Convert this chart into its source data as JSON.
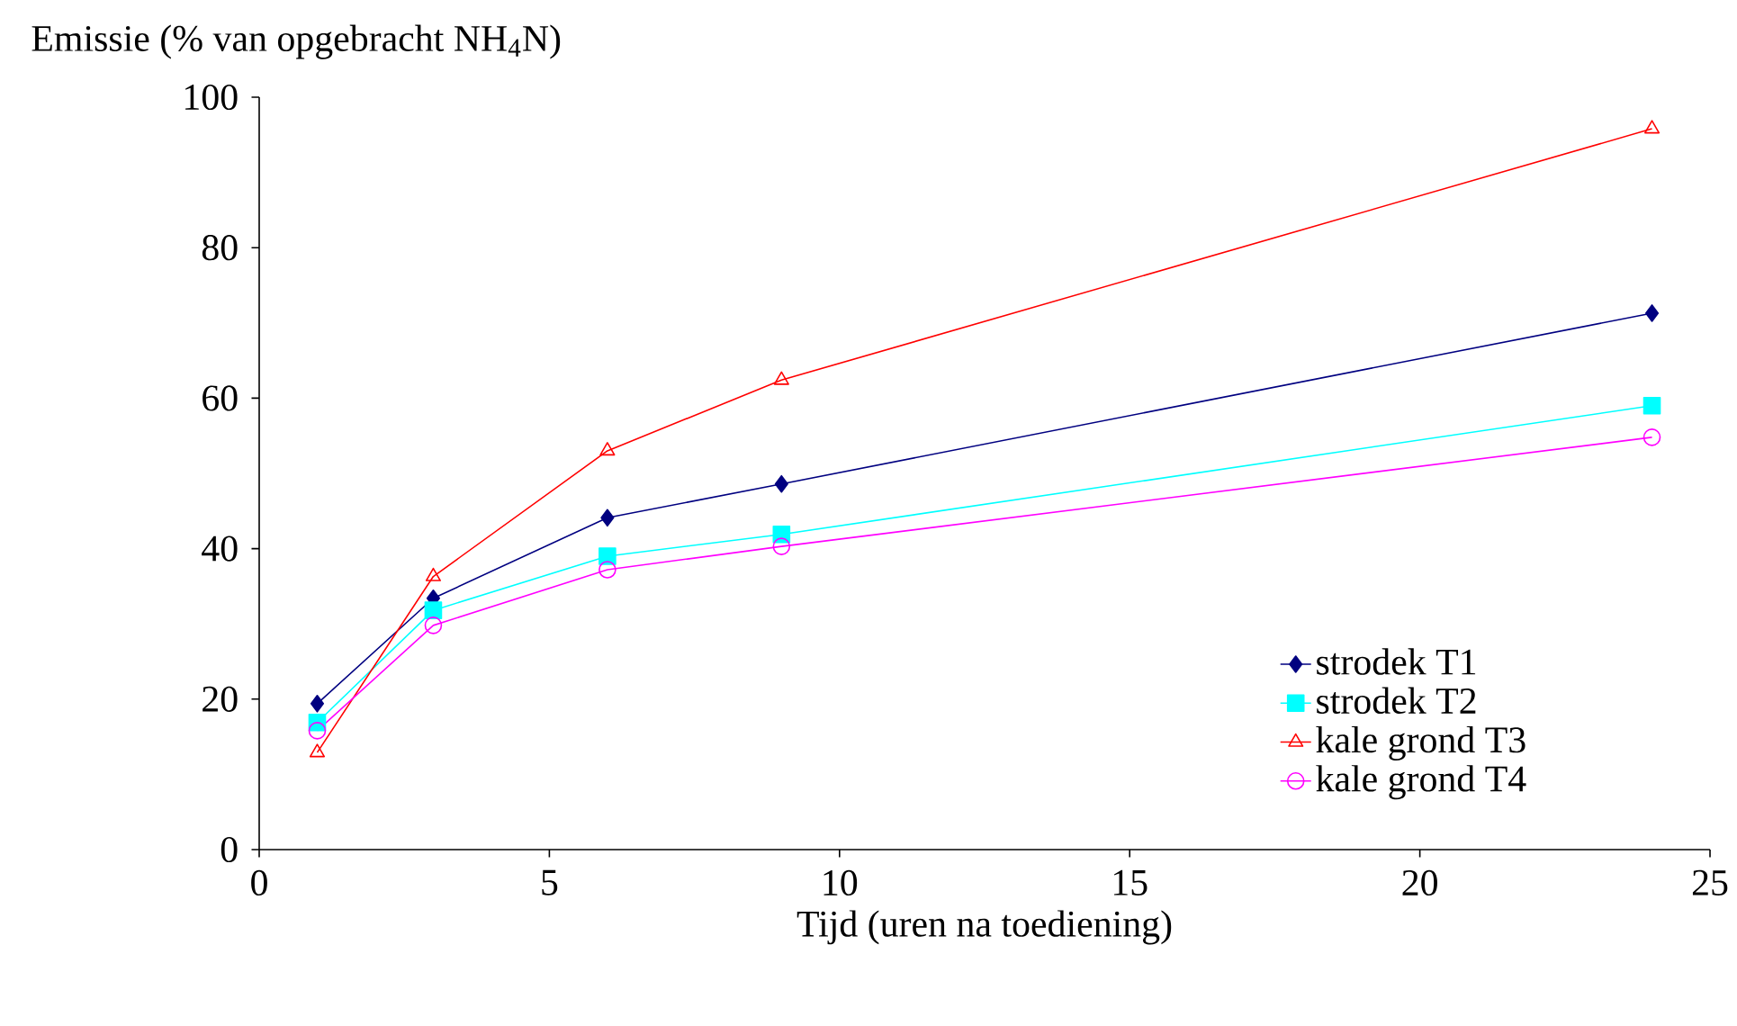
{
  "chart_data": {
    "type": "line",
    "xlabel": "Tijd (uren na toediening)",
    "ylabel": "Emissie (% van opgebracht NH$_{4}$N)",
    "xlim": [
      0,
      25
    ],
    "xticks": [
      0,
      5,
      10,
      15,
      20,
      25
    ],
    "ylim": [
      0,
      100
    ],
    "yticks": [
      0,
      20,
      40,
      60,
      80,
      100
    ],
    "x": [
      1,
      3,
      6,
      9,
      24
    ],
    "legend": "bottom right",
    "series": [
      {
        "name": "strodek T1",
        "color": "#000080",
        "marker": "diamond",
        "values": [
          19.4,
          33.4,
          44.1,
          48.6,
          71.3
        ]
      },
      {
        "name": "strodek T2",
        "color": "#00ffff",
        "marker": "square",
        "values": [
          16.9,
          31.8,
          39.0,
          41.9,
          59.0
        ]
      },
      {
        "name": "kale grond T3",
        "color": "#ff0000",
        "marker": "triangle",
        "values": [
          12.9,
          36.3,
          53.0,
          62.4,
          95.8
        ]
      },
      {
        "name": "kale grond T4",
        "color": "#ff00ff",
        "marker": "circle",
        "values": [
          15.8,
          29.8,
          37.2,
          40.3,
          54.8
        ]
      }
    ]
  }
}
